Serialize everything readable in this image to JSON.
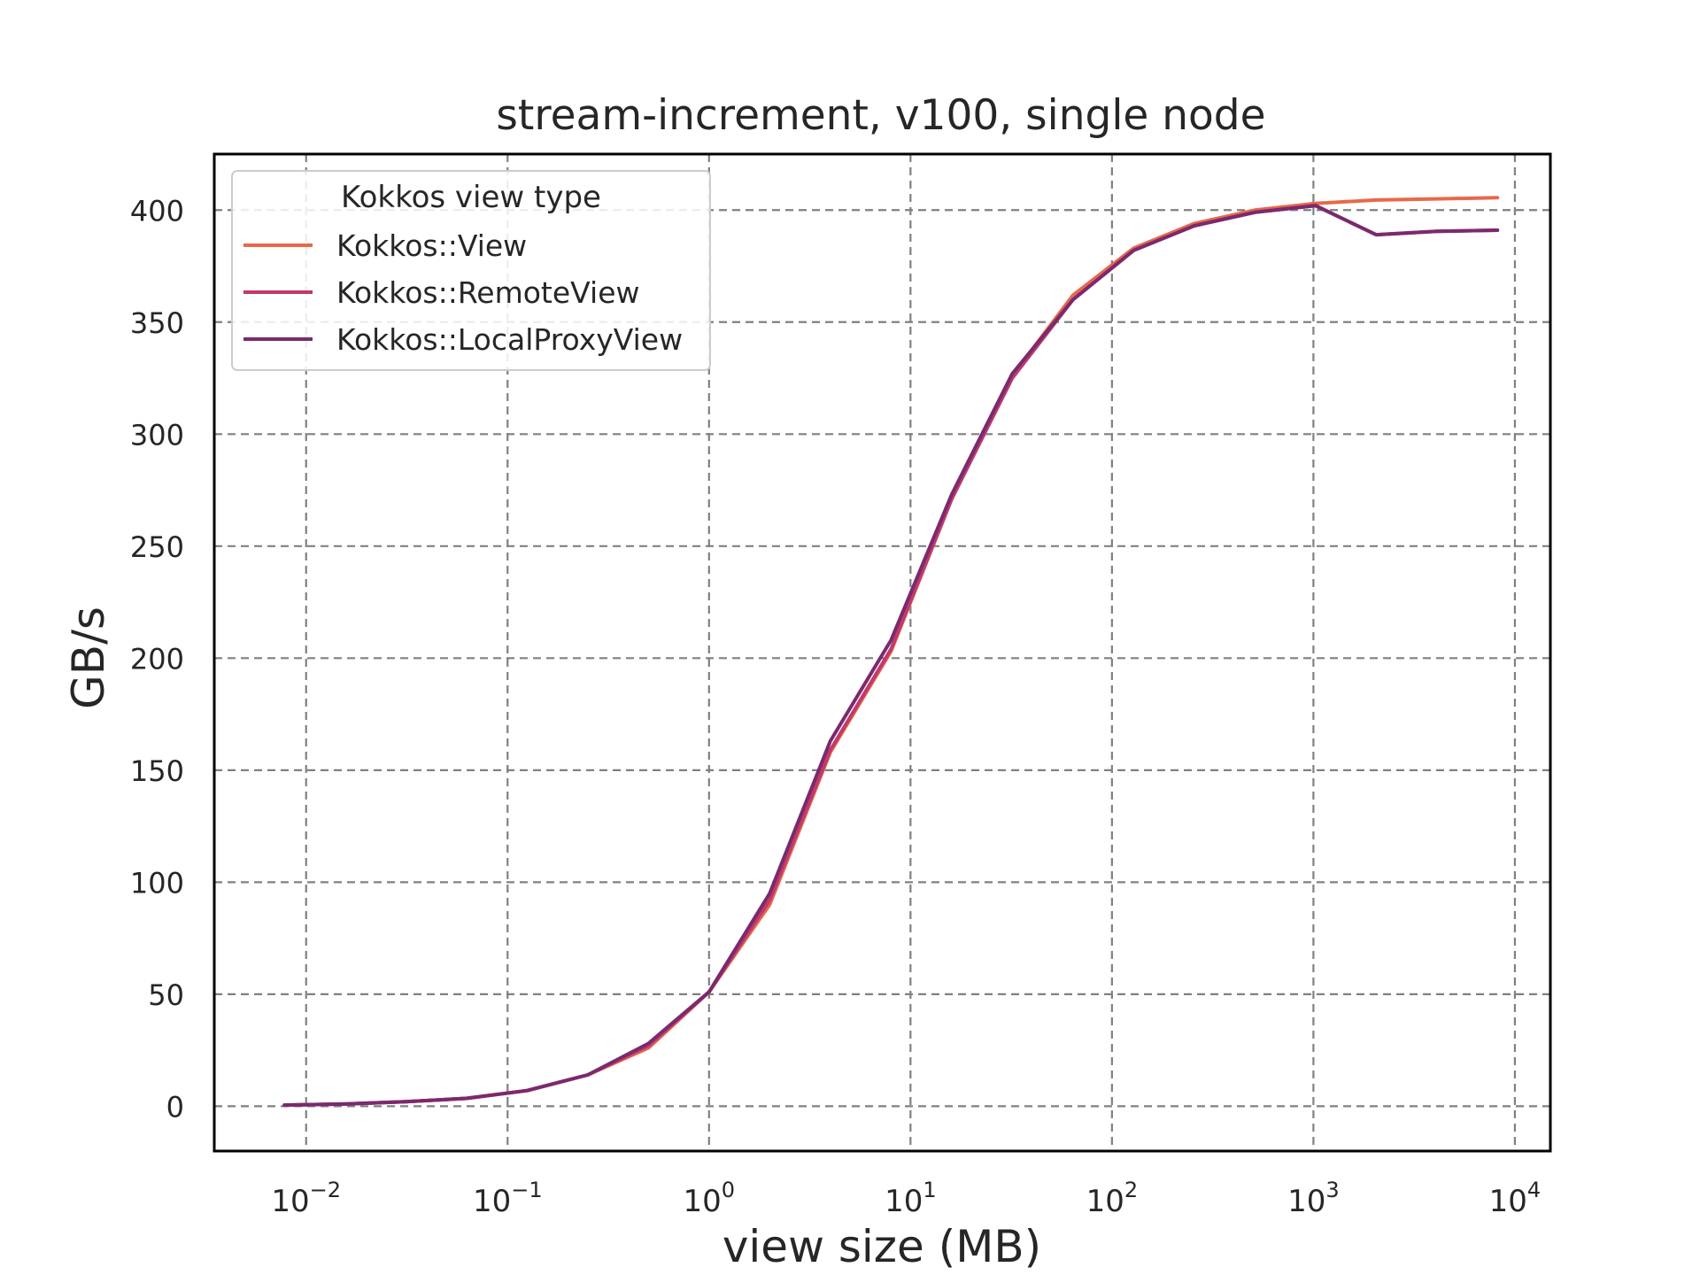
{
  "chart_data": {
    "type": "line",
    "title": "stream-increment, v100, single node",
    "xlabel": "view size (MB)",
    "ylabel": "GB/s",
    "x_scale": "log",
    "xlim": [
      0.0035,
      15000
    ],
    "ylim": [
      -20,
      425
    ],
    "grid": true,
    "legend": {
      "title": "Kokkos view type",
      "placement": "top-left"
    },
    "x_ticks": [
      {
        "base": "10",
        "exp": "−2",
        "value": 0.01
      },
      {
        "base": "10",
        "exp": "−1",
        "value": 0.1
      },
      {
        "base": "10",
        "exp": "0",
        "value": 1
      },
      {
        "base": "10",
        "exp": "1",
        "value": 10
      },
      {
        "base": "10",
        "exp": "2",
        "value": 100
      },
      {
        "base": "10",
        "exp": "3",
        "value": 1000
      },
      {
        "base": "10",
        "exp": "4",
        "value": 10000
      }
    ],
    "y_ticks": [
      {
        "label": "0",
        "value": 0
      },
      {
        "label": "50",
        "value": 50
      },
      {
        "label": "100",
        "value": 100
      },
      {
        "label": "150",
        "value": 150
      },
      {
        "label": "200",
        "value": 200
      },
      {
        "label": "250",
        "value": 250
      },
      {
        "label": "300",
        "value": 300
      },
      {
        "label": "350",
        "value": 350
      },
      {
        "label": "400",
        "value": 400
      }
    ],
    "x": [
      0.0078125,
      0.015625,
      0.03125,
      0.0625,
      0.125,
      0.25,
      0.5,
      1,
      2,
      4,
      8,
      16,
      32,
      64,
      128,
      256,
      512,
      1024,
      2048,
      4096,
      8192
    ],
    "series": [
      {
        "name": "Kokkos::View",
        "color": "#e8684a",
        "values": [
          0.5,
          1,
          2,
          3.5,
          7,
          14,
          26,
          51,
          90,
          158,
          203,
          271,
          326,
          362,
          383,
          394,
          400,
          403,
          404.5,
          405,
          405.5
        ]
      },
      {
        "name": "Kokkos::RemoteView",
        "color": "#c03a6b",
        "values": [
          0.5,
          1,
          2,
          3.5,
          7,
          14,
          27,
          51,
          92,
          159,
          204,
          271,
          325,
          360,
          382,
          393,
          399,
          402,
          389,
          390.5,
          391
        ]
      },
      {
        "name": "Kokkos::LocalProxyView",
        "color": "#7a2a6e",
        "values": [
          0.5,
          1,
          2,
          3.5,
          7,
          14,
          28,
          51,
          95,
          163,
          208,
          273,
          327,
          360,
          382,
          393,
          399,
          402,
          389,
          390.5,
          391
        ]
      }
    ]
  }
}
